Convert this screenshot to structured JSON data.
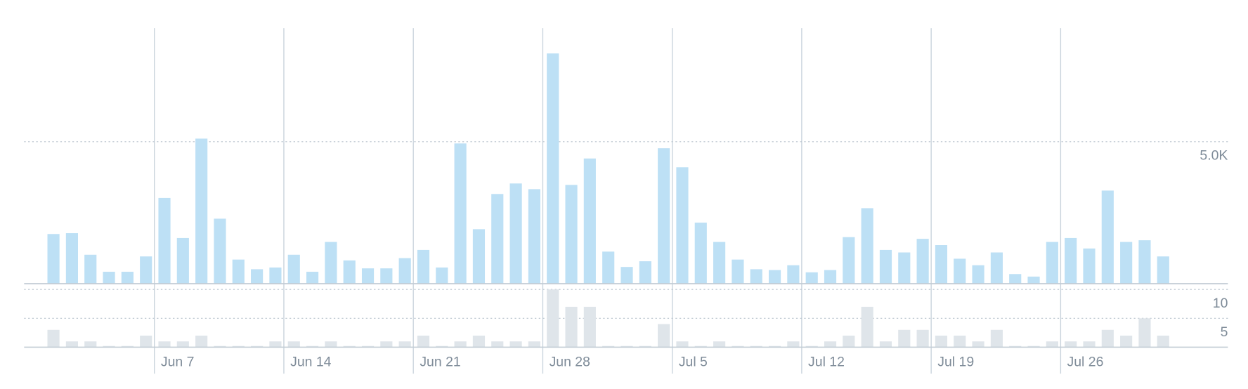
{
  "chart_data": [
    {
      "type": "bar",
      "color": "#bde0f5",
      "values": [
        1750,
        1780,
        1020,
        420,
        420,
        960,
        3020,
        1610,
        5110,
        2290,
        850,
        510,
        570,
        1020,
        420,
        1470,
        820,
        540,
        540,
        900,
        1190,
        570,
        4940,
        1920,
        3160,
        3530,
        3330,
        8110,
        3480,
        4410,
        1130,
        590,
        790,
        4770,
        4100,
        2150,
        1470,
        850,
        510,
        480,
        650,
        400,
        480,
        1640,
        2660,
        1190,
        1100,
        1580,
        1360,
        880,
        650,
        1100,
        340,
        250,
        1470,
        1610,
        1240,
        3280,
        1470,
        1530,
        960
      ],
      "ylim": [
        0,
        9000
      ],
      "yticks": [
        {
          "value": 5000,
          "label": "5.0K"
        }
      ],
      "grid": true
    },
    {
      "type": "bar",
      "color": "#dfe5ea",
      "categories": [
        null,
        null,
        null,
        null,
        null,
        null,
        "Jun 7",
        null,
        null,
        null,
        null,
        null,
        null,
        "Jun 14",
        null,
        null,
        null,
        null,
        null,
        null,
        "Jun 21",
        null,
        null,
        null,
        null,
        null,
        null,
        "Jun 28",
        null,
        null,
        null,
        null,
        null,
        null,
        "Jul 5",
        null,
        null,
        null,
        null,
        null,
        null,
        "Jul 12",
        null,
        null,
        null,
        null,
        null,
        null,
        "Jul 19",
        null,
        null,
        null,
        null,
        null,
        null,
        "Jul 26",
        null,
        null,
        null,
        null,
        null
      ],
      "values": [
        3,
        1,
        1,
        0,
        0,
        2,
        1,
        1,
        2,
        0,
        0,
        0,
        1,
        1,
        0,
        1,
        0,
        0,
        1,
        1,
        2,
        0,
        1,
        2,
        1,
        1,
        1,
        10,
        7,
        7,
        0,
        0,
        0,
        4,
        1,
        0,
        1,
        0,
        0,
        0,
        1,
        0,
        1,
        2,
        7,
        1,
        3,
        3,
        2,
        2,
        1,
        3,
        0,
        0,
        1,
        1,
        1,
        3,
        2,
        5,
        2
      ],
      "ylim": [
        0,
        11
      ],
      "yticks": [
        5,
        10
      ],
      "grid": true
    }
  ]
}
